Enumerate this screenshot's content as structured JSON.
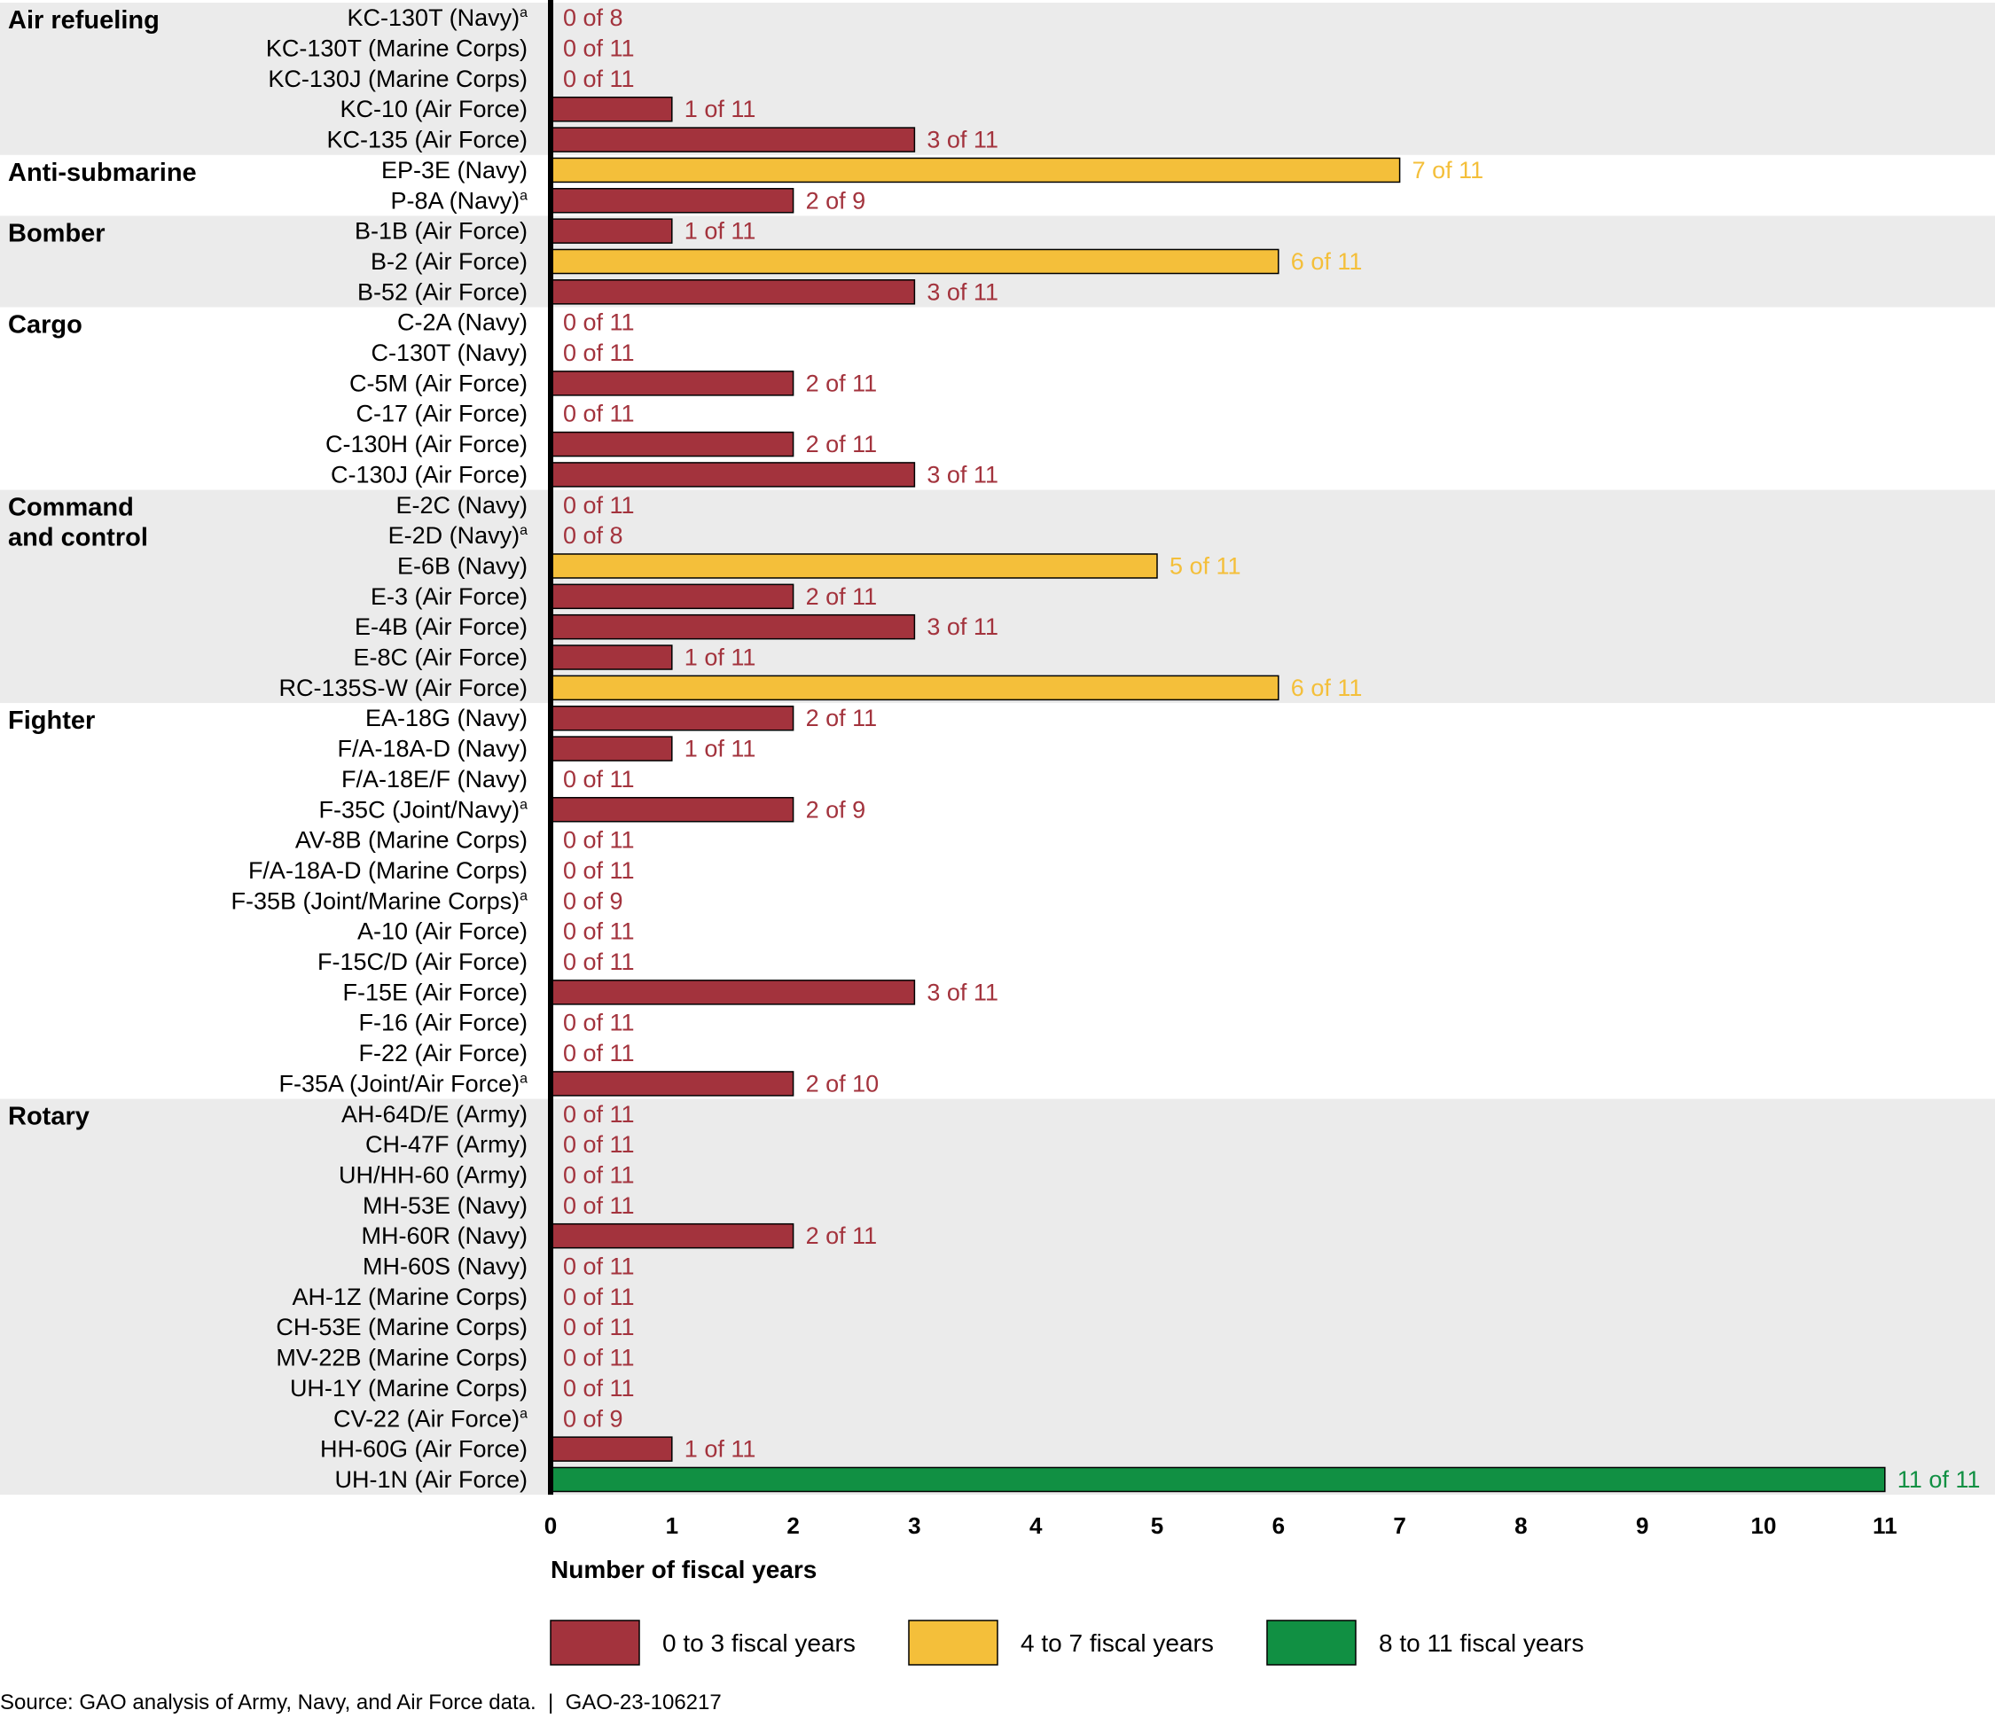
{
  "chart_data": {
    "type": "bar",
    "orientation": "horizontal",
    "xlabel": "Number of fiscal years",
    "xlim": [
      0,
      11
    ],
    "ticks": [
      0,
      1,
      2,
      3,
      4,
      5,
      6,
      7,
      8,
      9,
      10,
      11
    ],
    "legend": [
      {
        "key": "low",
        "label": "0 to 3 fiscal years",
        "color": "#a3333d"
      },
      {
        "key": "mid",
        "label": "4 to 7 fiscal years",
        "color": "#f4bf3a"
      },
      {
        "key": "high",
        "label": "8 to 11 fiscal years",
        "color": "#119043"
      }
    ],
    "value_colors": {
      "low": "#a3333d",
      "mid": "#f4bf3a",
      "high": "#119043"
    },
    "groups": [
      {
        "name": "Air refueling",
        "shaded": true,
        "items": [
          {
            "label": "KC-130T (Navy)",
            "note": "a",
            "value": 0,
            "total": 8,
            "display": "0 of 8"
          },
          {
            "label": "KC-130T (Marine Corps)",
            "value": 0,
            "total": 11,
            "display": "0 of 11"
          },
          {
            "label": "KC-130J (Marine Corps)",
            "value": 0,
            "total": 11,
            "display": "0 of 11"
          },
          {
            "label": "KC-10 (Air Force)",
            "value": 1,
            "total": 11,
            "display": "1 of 11"
          },
          {
            "label": "KC-135 (Air Force)",
            "value": 3,
            "total": 11,
            "display": "3 of 11"
          }
        ]
      },
      {
        "name": "Anti-submarine",
        "shaded": false,
        "items": [
          {
            "label": "EP-3E (Navy)",
            "value": 7,
            "total": 11,
            "display": "7 of 11"
          },
          {
            "label": "P-8A (Navy)",
            "note": "a",
            "value": 2,
            "total": 9,
            "display": "2 of 9"
          }
        ]
      },
      {
        "name": "Bomber",
        "shaded": true,
        "items": [
          {
            "label": "B-1B (Air Force)",
            "value": 1,
            "total": 11,
            "display": "1 of 11"
          },
          {
            "label": "B-2 (Air Force)",
            "value": 6,
            "total": 11,
            "display": "6 of 11"
          },
          {
            "label": "B-52 (Air Force)",
            "value": 3,
            "total": 11,
            "display": "3 of 11"
          }
        ]
      },
      {
        "name": "Cargo",
        "shaded": false,
        "items": [
          {
            "label": "C-2A (Navy)",
            "value": 0,
            "total": 11,
            "display": "0 of 11"
          },
          {
            "label": "C-130T (Navy)",
            "value": 0,
            "total": 11,
            "display": "0 of 11"
          },
          {
            "label": "C-5M (Air Force)",
            "value": 2,
            "total": 11,
            "display": "2 of 11"
          },
          {
            "label": "C-17 (Air Force)",
            "value": 0,
            "total": 11,
            "display": "0 of 11"
          },
          {
            "label": "C-130H (Air Force)",
            "value": 2,
            "total": 11,
            "display": "2 of 11"
          },
          {
            "label": "C-130J (Air Force)",
            "value": 3,
            "total": 11,
            "display": "3 of 11"
          }
        ]
      },
      {
        "name": "Command and control",
        "name_lines": [
          "Command",
          "and control"
        ],
        "shaded": true,
        "items": [
          {
            "label": "E-2C (Navy)",
            "value": 0,
            "total": 11,
            "display": "0 of 11"
          },
          {
            "label": "E-2D (Navy)",
            "note": "a",
            "value": 0,
            "total": 8,
            "display": "0 of 8"
          },
          {
            "label": "E-6B (Navy)",
            "value": 5,
            "total": 11,
            "display": "5 of 11"
          },
          {
            "label": "E-3 (Air Force)",
            "value": 2,
            "total": 11,
            "display": "2 of 11"
          },
          {
            "label": "E-4B (Air Force)",
            "value": 3,
            "total": 11,
            "display": "3 of 11"
          },
          {
            "label": "E-8C (Air Force)",
            "value": 1,
            "total": 11,
            "display": "1 of 11"
          },
          {
            "label": "RC-135S-W (Air Force)",
            "value": 6,
            "total": 11,
            "display": "6 of 11"
          }
        ]
      },
      {
        "name": "Fighter",
        "shaded": false,
        "items": [
          {
            "label": "EA-18G (Navy)",
            "value": 2,
            "total": 11,
            "display": "2 of 11"
          },
          {
            "label": "F/A-18A-D (Navy)",
            "value": 1,
            "total": 11,
            "display": "1 of 11"
          },
          {
            "label": "F/A-18E/F (Navy)",
            "value": 0,
            "total": 11,
            "display": "0 of 11"
          },
          {
            "label": "F-35C (Joint/Navy)",
            "note": "a",
            "value": 2,
            "total": 9,
            "display": "2 of 9"
          },
          {
            "label": "AV-8B (Marine Corps)",
            "value": 0,
            "total": 11,
            "display": "0 of 11"
          },
          {
            "label": "F/A-18A-D (Marine Corps)",
            "value": 0,
            "total": 11,
            "display": "0 of 11"
          },
          {
            "label": "F-35B (Joint/Marine Corps)",
            "note": "a",
            "value": 0,
            "total": 9,
            "display": "0 of 9"
          },
          {
            "label": "A-10 (Air Force)",
            "value": 0,
            "total": 11,
            "display": "0 of 11"
          },
          {
            "label": "F-15C/D (Air Force)",
            "value": 0,
            "total": 11,
            "display": "0 of 11"
          },
          {
            "label": "F-15E (Air Force)",
            "value": 3,
            "total": 11,
            "display": "3 of 11"
          },
          {
            "label": "F-16 (Air Force)",
            "value": 0,
            "total": 11,
            "display": "0 of 11"
          },
          {
            "label": "F-22 (Air Force)",
            "value": 0,
            "total": 11,
            "display": "0 of 11"
          },
          {
            "label": "F-35A (Joint/Air Force)",
            "note": "a",
            "value": 2,
            "total": 10,
            "display": "2 of 10"
          }
        ]
      },
      {
        "name": "Rotary",
        "shaded": true,
        "items": [
          {
            "label": "AH-64D/E (Army)",
            "value": 0,
            "total": 11,
            "display": "0 of 11"
          },
          {
            "label": "CH-47F (Army)",
            "value": 0,
            "total": 11,
            "display": "0 of 11"
          },
          {
            "label": "UH/HH-60 (Army)",
            "value": 0,
            "total": 11,
            "display": "0 of 11"
          },
          {
            "label": "MH-53E (Navy)",
            "value": 0,
            "total": 11,
            "display": "0 of 11"
          },
          {
            "label": "MH-60R (Navy)",
            "value": 2,
            "total": 11,
            "display": "2 of 11"
          },
          {
            "label": "MH-60S (Navy)",
            "value": 0,
            "total": 11,
            "display": "0 of 11"
          },
          {
            "label": "AH-1Z (Marine Corps)",
            "value": 0,
            "total": 11,
            "display": "0 of 11"
          },
          {
            "label": "CH-53E (Marine Corps)",
            "value": 0,
            "total": 11,
            "display": "0 of 11"
          },
          {
            "label": "MV-22B (Marine Corps)",
            "value": 0,
            "total": 11,
            "display": "0 of 11"
          },
          {
            "label": "UH-1Y (Marine Corps)",
            "value": 0,
            "total": 11,
            "display": "0 of 11"
          },
          {
            "label": "CV-22 (Air Force)",
            "note": "a",
            "value": 0,
            "total": 9,
            "display": "0 of 9"
          },
          {
            "label": "HH-60G (Air Force)",
            "value": 1,
            "total": 11,
            "display": "1 of 11"
          },
          {
            "label": "UH-1N (Air Force)",
            "value": 11,
            "total": 11,
            "display": "11 of 11"
          }
        ]
      }
    ]
  },
  "source_note": "Source: GAO analysis of Army, Navy, and Air Force data.  |  GAO-23-106217"
}
